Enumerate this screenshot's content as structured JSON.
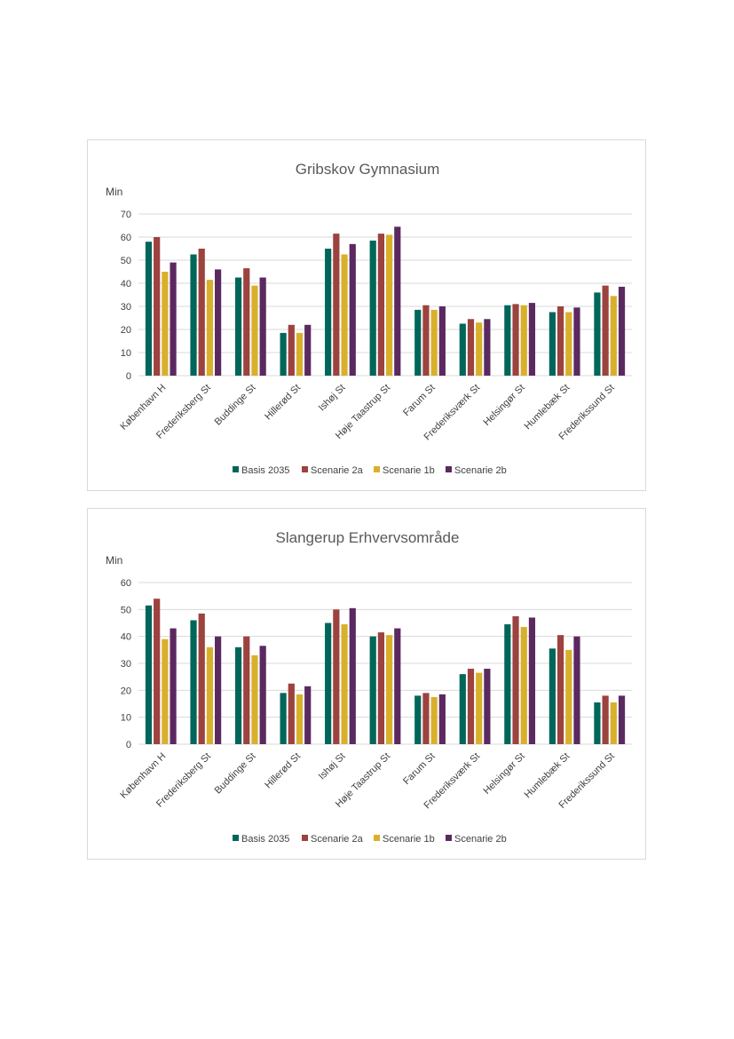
{
  "colors": {
    "Basis 2035": "#00665a",
    "Scenarie 2a": "#9c423f",
    "Scenarie 1b": "#d9b02b",
    "Scenarie 2b": "#5b2960",
    "grid": "#d9d9d9",
    "axis_text": "#404040"
  },
  "chart_data": [
    {
      "type": "bar",
      "title": "Gribskov Gymnasium",
      "ylabel": "Min",
      "xlabel": "",
      "ylim": [
        0,
        70
      ],
      "yticks": [
        0,
        10,
        20,
        30,
        40,
        50,
        60,
        70
      ],
      "grid": true,
      "legend": "bottom",
      "categories": [
        "København H",
        "Frederiksberg St",
        "Buddinge St",
        "Hillerød St",
        "Ishøj St",
        "Høje Taastrup St",
        "Farum St",
        "Frederiksværk St",
        "Helsingør St",
        "Humlebæk St",
        "Frederikssund St"
      ],
      "series": [
        {
          "name": "Basis 2035",
          "values": [
            58,
            52.5,
            42.5,
            18.5,
            55,
            58.5,
            28.5,
            22.5,
            30.5,
            27.5,
            36
          ]
        },
        {
          "name": "Scenarie 2a",
          "values": [
            60,
            55,
            46.5,
            22,
            61.5,
            61.5,
            30.5,
            24.5,
            31,
            30,
            39
          ]
        },
        {
          "name": "Scenarie 1b",
          "values": [
            45,
            41.5,
            39,
            18.5,
            52.5,
            61,
            28.5,
            23,
            30.5,
            27.5,
            34.5
          ]
        },
        {
          "name": "Scenarie 2b",
          "values": [
            49,
            46,
            42.5,
            22,
            57,
            64.5,
            30,
            24.5,
            31.5,
            29.5,
            38.5
          ]
        }
      ]
    },
    {
      "type": "bar",
      "title": "Slangerup Erhvervsområde",
      "ylabel": "Min",
      "xlabel": "",
      "ylim": [
        0,
        60
      ],
      "yticks": [
        0,
        10,
        20,
        30,
        40,
        50,
        60
      ],
      "grid": true,
      "legend": "bottom",
      "categories": [
        "København H",
        "Frederiksberg St",
        "Buddinge St",
        "Hillerød St",
        "Ishøj St",
        "Høje Taastrup St",
        "Farum St",
        "Frederiksværk St",
        "Helsingør St",
        "Humlebæk St",
        "Frederikssund St"
      ],
      "series": [
        {
          "name": "Basis 2035",
          "values": [
            51.5,
            46,
            36,
            19,
            45,
            40,
            18,
            26,
            44.5,
            35.5,
            15.5
          ]
        },
        {
          "name": "Scenarie 2a",
          "values": [
            54,
            48.5,
            40,
            22.5,
            50,
            41.5,
            19,
            28,
            47.5,
            40.5,
            18
          ]
        },
        {
          "name": "Scenarie 1b",
          "values": [
            39,
            36,
            33,
            18.5,
            44.5,
            40.5,
            17.5,
            26.5,
            43.5,
            35,
            15.5
          ]
        },
        {
          "name": "Scenarie 2b",
          "values": [
            43,
            40,
            36.5,
            21.5,
            50.5,
            43,
            18.5,
            28,
            47,
            40,
            18
          ]
        }
      ]
    }
  ]
}
